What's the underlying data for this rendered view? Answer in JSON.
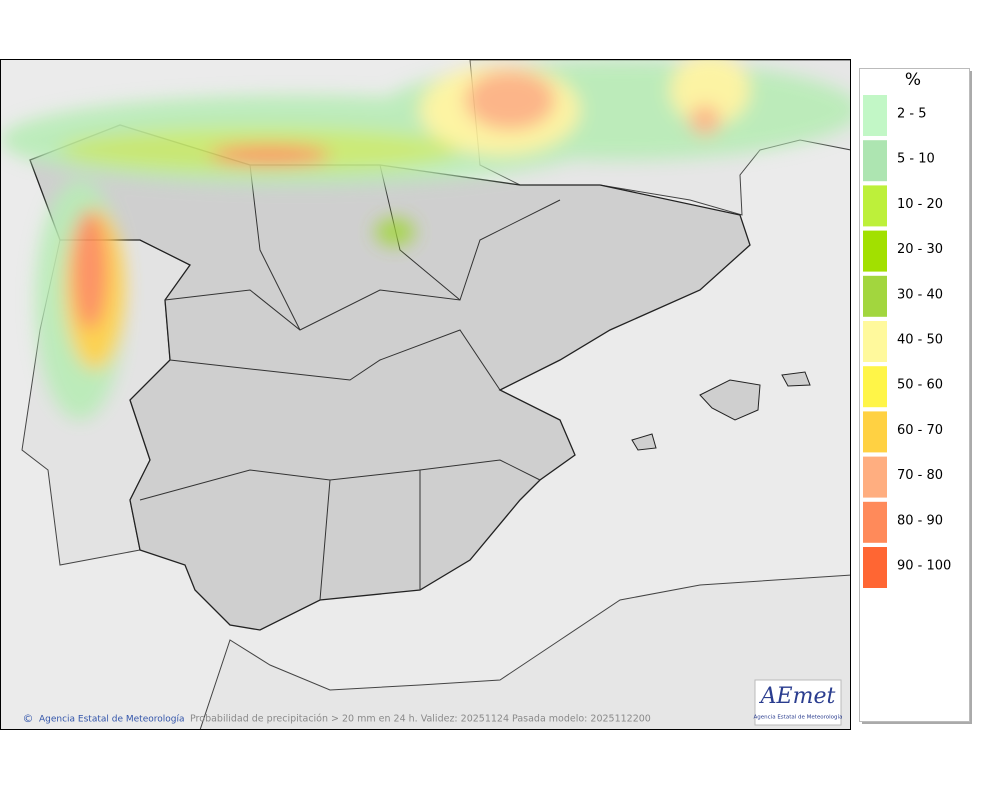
{
  "map": {
    "footer": {
      "copyright_symbol": "©",
      "agency": "Agencia Estatal de Meteorología",
      "caption": "Probabilidad de precipitación > 20 mm en 24 h. Validez: 20251124 Pasada modelo: 2025112200"
    },
    "logo": {
      "name": "AEmet",
      "subtitle": "Agencia Estatal de Meteorología"
    },
    "legend": {
      "title": "%",
      "classes": [
        {
          "label": "2 - 5",
          "color": "#c2f7c6"
        },
        {
          "label": "5 - 10",
          "color": "#ade5b1"
        },
        {
          "label": "10 - 20",
          "color": "#bdf03a"
        },
        {
          "label": "20 - 30",
          "color": "#a2e000"
        },
        {
          "label": "30 - 40",
          "color": "#a2d63e"
        },
        {
          "label": "40 - 50",
          "color": "#fff99c"
        },
        {
          "label": "50 - 60",
          "color": "#fff548"
        },
        {
          "label": "60 - 70",
          "color": "#ffd142"
        },
        {
          "label": "70 - 80",
          "color": "#ffae80"
        },
        {
          "label": "80 - 90",
          "color": "#ff8a5a"
        },
        {
          "label": "90 - 100",
          "color": "#ff6633"
        }
      ]
    }
  }
}
